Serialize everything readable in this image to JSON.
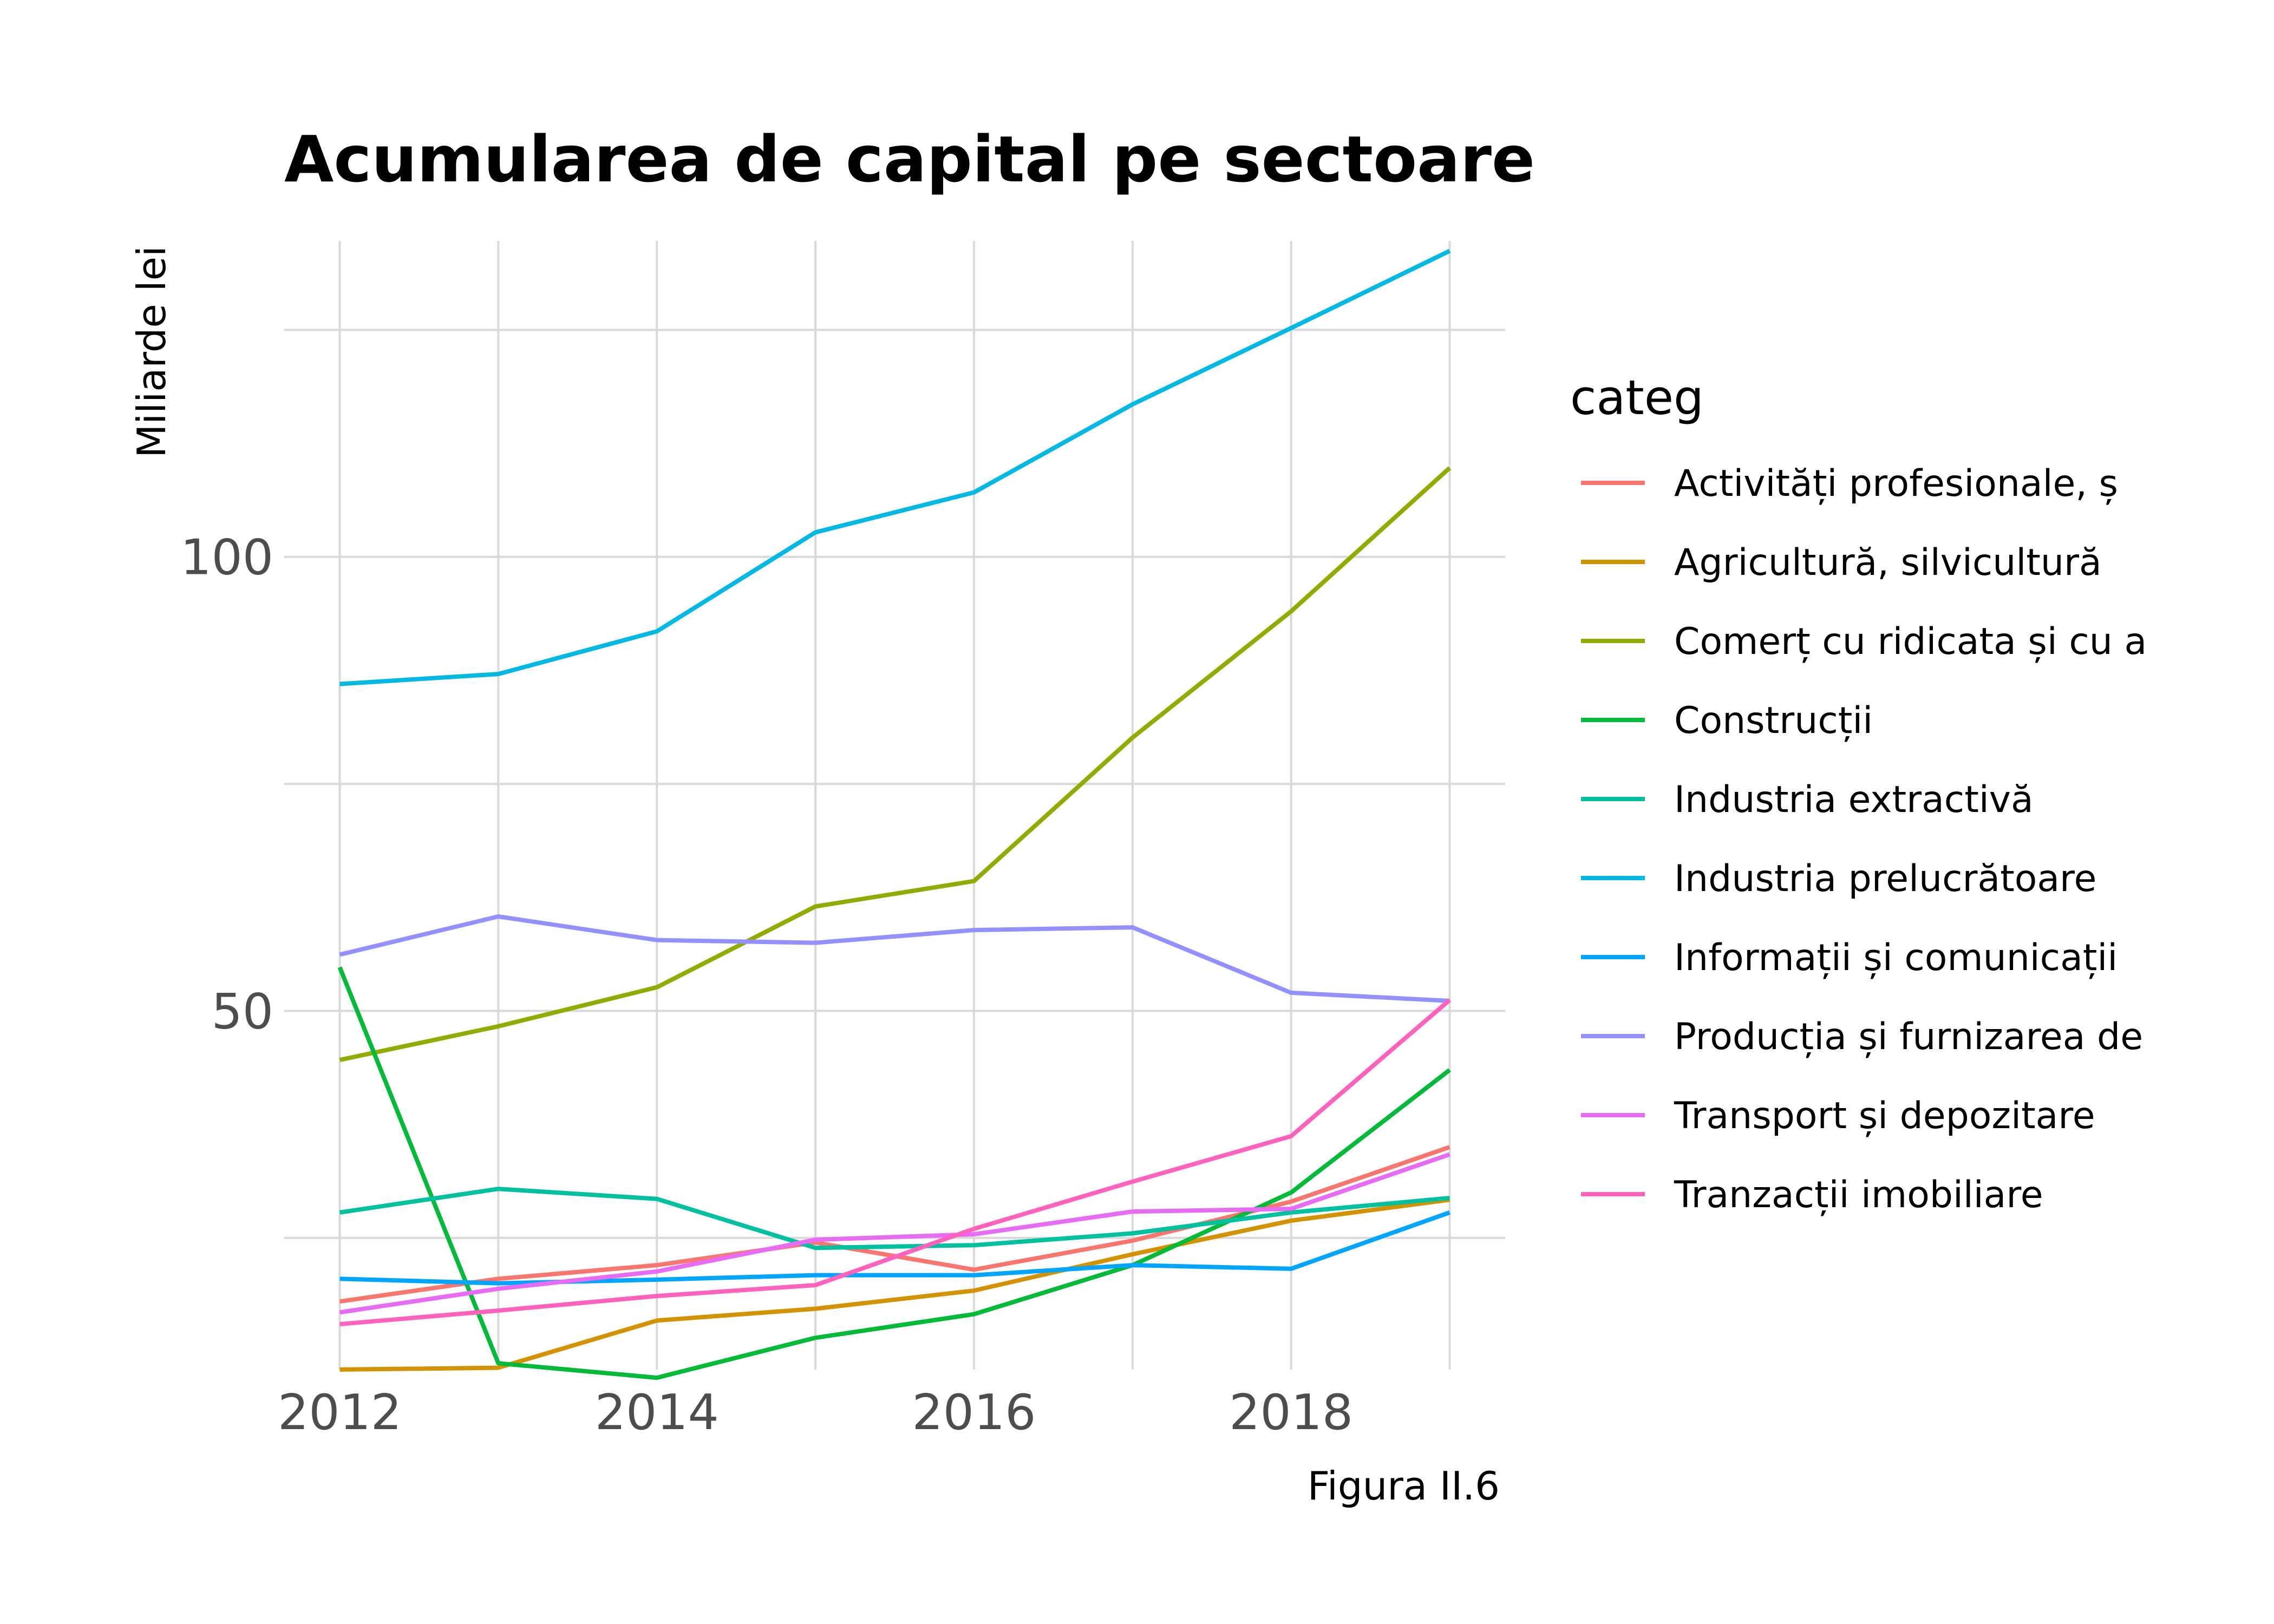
{
  "chart_data": {
    "type": "line",
    "title": "Acumularea de capital pe sectoare",
    "ylabel": "Miliarde lei",
    "xlabel": "",
    "caption": "Figura II.6",
    "legend_title": "categ",
    "legend_position": "right",
    "grid": true,
    "x": [
      2012,
      2013,
      2014,
      2015,
      2016,
      2017,
      2018,
      2019
    ],
    "xticks": [
      2012,
      2014,
      2016,
      2018
    ],
    "yticks": [
      50,
      100
    ],
    "xlim": [
      2011.65,
      2019.35
    ],
    "ylim": [
      10.5,
      134.8
    ],
    "series": [
      {
        "name": "Activități profesionale, ș",
        "color": "#F8766D",
        "values": [
          18.0,
          20.5,
          22.0,
          24.5,
          21.5,
          24.7,
          29.0,
          35.0
        ]
      },
      {
        "name": "Agricultură, silvicultură",
        "color": "#D39200",
        "values": [
          10.5,
          10.7,
          15.9,
          17.2,
          19.2,
          23.2,
          26.9,
          29.2
        ]
      },
      {
        "name": "Comerț cu ridicata și cu a",
        "color": "#93AA00",
        "values": [
          44.6,
          48.3,
          52.6,
          61.5,
          64.3,
          80.1,
          94.0,
          109.8
        ]
      },
      {
        "name": "Construcții",
        "color": "#00BA38",
        "values": [
          54.8,
          11.2,
          9.6,
          14.0,
          16.6,
          22.0,
          30.0,
          43.5
        ]
      },
      {
        "name": "Industria extractivă",
        "color": "#00C19F",
        "values": [
          27.8,
          30.4,
          29.3,
          23.9,
          24.2,
          25.5,
          27.8,
          29.4
        ]
      },
      {
        "name": "Industria prelucrătoare",
        "color": "#00B9E3",
        "values": [
          86.0,
          87.1,
          91.8,
          102.7,
          107.1,
          116.8,
          125.2,
          133.7
        ]
      },
      {
        "name": "Informații și comunicații",
        "color": "#00A5FF",
        "values": [
          20.5,
          20.0,
          20.4,
          20.9,
          20.9,
          22.0,
          21.6,
          27.8
        ]
      },
      {
        "name": "Producția și furnizarea de",
        "color": "#9590FF",
        "values": [
          56.2,
          60.4,
          57.8,
          57.5,
          58.9,
          59.2,
          52.0,
          51.1
        ]
      },
      {
        "name": "Transport și depozitare",
        "color": "#E76BF3",
        "values": [
          16.8,
          19.4,
          21.3,
          24.8,
          25.4,
          27.9,
          28.2,
          34.2
        ]
      },
      {
        "name": "Tranzacții imobiliare",
        "color": "#FF62BC",
        "values": [
          15.5,
          17.0,
          18.6,
          19.8,
          26.0,
          31.2,
          36.2,
          51.2
        ]
      }
    ]
  }
}
